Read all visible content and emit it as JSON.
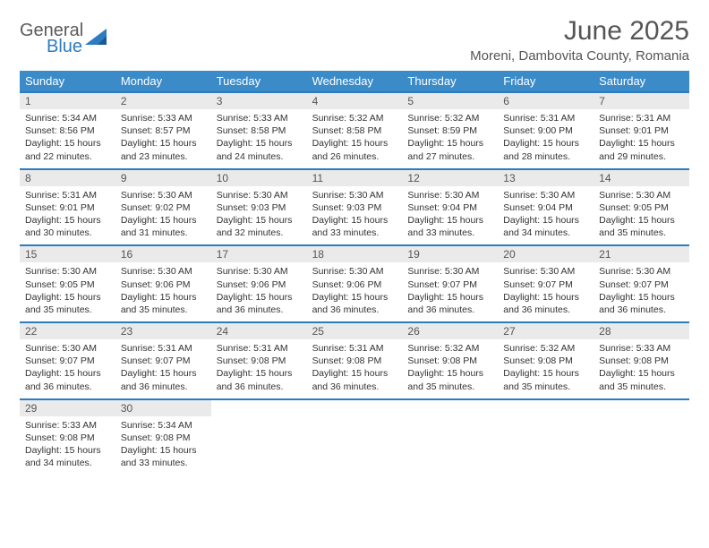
{
  "brand": {
    "general": "General",
    "blue": "Blue"
  },
  "title": "June 2025",
  "subtitle": "Moreni, Dambovita County, Romania",
  "colors": {
    "header_bg": "#3b8bc9",
    "header_text": "#ffffff",
    "week_border": "#2d7bc0",
    "daynum_bg": "#eaeaea",
    "text": "#333333",
    "brand_gray": "#5a5a5a",
    "brand_blue": "#2d7bc0",
    "background": "#ffffff"
  },
  "layout": {
    "columns": 7,
    "font_family": "Arial",
    "title_fontsize": 30,
    "subtitle_fontsize": 15,
    "header_fontsize": 13,
    "daynum_fontsize": 12,
    "cell_fontsize": 10.5
  },
  "day_labels": [
    "Sunday",
    "Monday",
    "Tuesday",
    "Wednesday",
    "Thursday",
    "Friday",
    "Saturday"
  ],
  "weeks": [
    [
      {
        "n": "1",
        "sr": "5:34 AM",
        "ss": "8:56 PM",
        "dl": "15 hours and 22 minutes."
      },
      {
        "n": "2",
        "sr": "5:33 AM",
        "ss": "8:57 PM",
        "dl": "15 hours and 23 minutes."
      },
      {
        "n": "3",
        "sr": "5:33 AM",
        "ss": "8:58 PM",
        "dl": "15 hours and 24 minutes."
      },
      {
        "n": "4",
        "sr": "5:32 AM",
        "ss": "8:58 PM",
        "dl": "15 hours and 26 minutes."
      },
      {
        "n": "5",
        "sr": "5:32 AM",
        "ss": "8:59 PM",
        "dl": "15 hours and 27 minutes."
      },
      {
        "n": "6",
        "sr": "5:31 AM",
        "ss": "9:00 PM",
        "dl": "15 hours and 28 minutes."
      },
      {
        "n": "7",
        "sr": "5:31 AM",
        "ss": "9:01 PM",
        "dl": "15 hours and 29 minutes."
      }
    ],
    [
      {
        "n": "8",
        "sr": "5:31 AM",
        "ss": "9:01 PM",
        "dl": "15 hours and 30 minutes."
      },
      {
        "n": "9",
        "sr": "5:30 AM",
        "ss": "9:02 PM",
        "dl": "15 hours and 31 minutes."
      },
      {
        "n": "10",
        "sr": "5:30 AM",
        "ss": "9:03 PM",
        "dl": "15 hours and 32 minutes."
      },
      {
        "n": "11",
        "sr": "5:30 AM",
        "ss": "9:03 PM",
        "dl": "15 hours and 33 minutes."
      },
      {
        "n": "12",
        "sr": "5:30 AM",
        "ss": "9:04 PM",
        "dl": "15 hours and 33 minutes."
      },
      {
        "n": "13",
        "sr": "5:30 AM",
        "ss": "9:04 PM",
        "dl": "15 hours and 34 minutes."
      },
      {
        "n": "14",
        "sr": "5:30 AM",
        "ss": "9:05 PM",
        "dl": "15 hours and 35 minutes."
      }
    ],
    [
      {
        "n": "15",
        "sr": "5:30 AM",
        "ss": "9:05 PM",
        "dl": "15 hours and 35 minutes."
      },
      {
        "n": "16",
        "sr": "5:30 AM",
        "ss": "9:06 PM",
        "dl": "15 hours and 35 minutes."
      },
      {
        "n": "17",
        "sr": "5:30 AM",
        "ss": "9:06 PM",
        "dl": "15 hours and 36 minutes."
      },
      {
        "n": "18",
        "sr": "5:30 AM",
        "ss": "9:06 PM",
        "dl": "15 hours and 36 minutes."
      },
      {
        "n": "19",
        "sr": "5:30 AM",
        "ss": "9:07 PM",
        "dl": "15 hours and 36 minutes."
      },
      {
        "n": "20",
        "sr": "5:30 AM",
        "ss": "9:07 PM",
        "dl": "15 hours and 36 minutes."
      },
      {
        "n": "21",
        "sr": "5:30 AM",
        "ss": "9:07 PM",
        "dl": "15 hours and 36 minutes."
      }
    ],
    [
      {
        "n": "22",
        "sr": "5:30 AM",
        "ss": "9:07 PM",
        "dl": "15 hours and 36 minutes."
      },
      {
        "n": "23",
        "sr": "5:31 AM",
        "ss": "9:07 PM",
        "dl": "15 hours and 36 minutes."
      },
      {
        "n": "24",
        "sr": "5:31 AM",
        "ss": "9:08 PM",
        "dl": "15 hours and 36 minutes."
      },
      {
        "n": "25",
        "sr": "5:31 AM",
        "ss": "9:08 PM",
        "dl": "15 hours and 36 minutes."
      },
      {
        "n": "26",
        "sr": "5:32 AM",
        "ss": "9:08 PM",
        "dl": "15 hours and 35 minutes."
      },
      {
        "n": "27",
        "sr": "5:32 AM",
        "ss": "9:08 PM",
        "dl": "15 hours and 35 minutes."
      },
      {
        "n": "28",
        "sr": "5:33 AM",
        "ss": "9:08 PM",
        "dl": "15 hours and 35 minutes."
      }
    ],
    [
      {
        "n": "29",
        "sr": "5:33 AM",
        "ss": "9:08 PM",
        "dl": "15 hours and 34 minutes."
      },
      {
        "n": "30",
        "sr": "5:34 AM",
        "ss": "9:08 PM",
        "dl": "15 hours and 33 minutes."
      },
      null,
      null,
      null,
      null,
      null
    ]
  ],
  "labels": {
    "sunrise": "Sunrise:",
    "sunset": "Sunset:",
    "daylight": "Daylight:"
  }
}
